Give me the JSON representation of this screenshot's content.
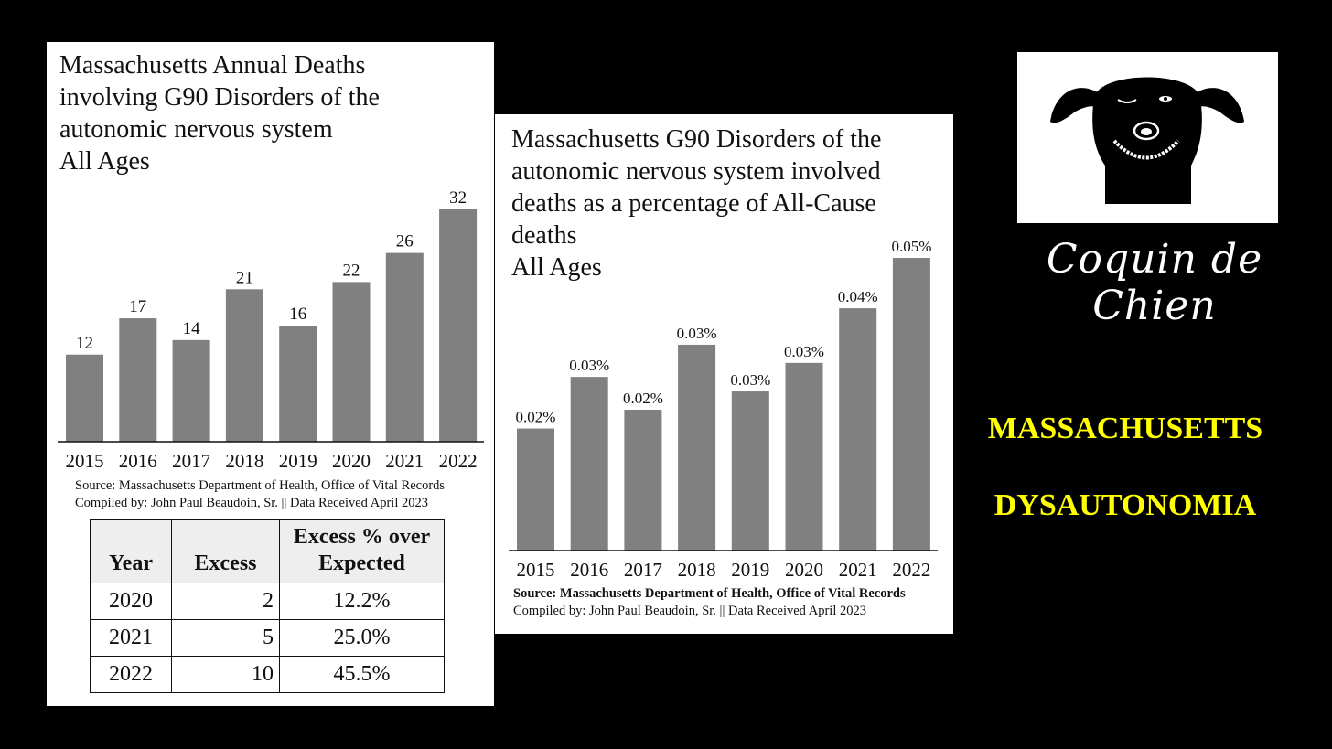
{
  "left_panel": {
    "title_lines": [
      "Massachusetts Annual Deaths",
      "involving G90 Disorders of the",
      "autonomic nervous system",
      "All Ages"
    ],
    "source_line1": "Source:  Massachusetts Department of Health, Office of Vital Records",
    "source_line2": "Compiled by:  John Paul Beaudoin, Sr. || Data Received April 2023",
    "table": {
      "headers": [
        "Year",
        "Excess",
        "Excess % over Expected"
      ],
      "rows": [
        [
          "2020",
          "2",
          "12.2%"
        ],
        [
          "2021",
          "5",
          "25.0%"
        ],
        [
          "2022",
          "10",
          "45.5%"
        ]
      ]
    }
  },
  "right_panel": {
    "title_lines": [
      "Massachusetts G90 Disorders of the",
      "autonomic nervous system involved",
      "deaths as a percentage of All-Cause",
      "deaths",
      "All Ages"
    ],
    "source_line1": "Source:  Massachusetts Department of Health, Office of Vital Records",
    "source_line2": "Compiled by:  John Paul Beaudoin, Sr. || Data Received April 2023"
  },
  "logo": {
    "text": "Coquin de Chien",
    "icon": "dog-face-icon"
  },
  "headline": {
    "line1": "MASSACHUSETTS",
    "line2": "DYSAUTONOMIA"
  },
  "colors": {
    "bar": "#808080",
    "headline": "#ffff00",
    "background": "#000000"
  },
  "chart_data": [
    {
      "type": "bar",
      "title": "Massachusetts Annual Deaths involving G90 Disorders of the autonomic nervous system All Ages",
      "categories": [
        "2015",
        "2016",
        "2017",
        "2018",
        "2019",
        "2020",
        "2021",
        "2022"
      ],
      "values": [
        12,
        17,
        14,
        21,
        16,
        22,
        26,
        32
      ],
      "labels": [
        "12",
        "17",
        "14",
        "21",
        "16",
        "22",
        "26",
        "32"
      ],
      "ylim": [
        0,
        32
      ],
      "grid": false
    },
    {
      "type": "bar",
      "title": "Massachusetts G90 Disorders of the autonomic nervous system involved deaths as a percentage of All-Cause deaths All Ages",
      "categories": [
        "2015",
        "2016",
        "2017",
        "2018",
        "2019",
        "2020",
        "2021",
        "2022"
      ],
      "values": [
        0.0201,
        0.0286,
        0.0232,
        0.0339,
        0.0262,
        0.0309,
        0.0399,
        0.0482
      ],
      "labels": [
        "0.02%",
        "0.03%",
        "0.02%",
        "0.03%",
        "0.03%",
        "0.03%",
        "0.04%",
        "0.05%"
      ],
      "ylim": [
        0,
        0.0482
      ],
      "grid": false
    }
  ]
}
